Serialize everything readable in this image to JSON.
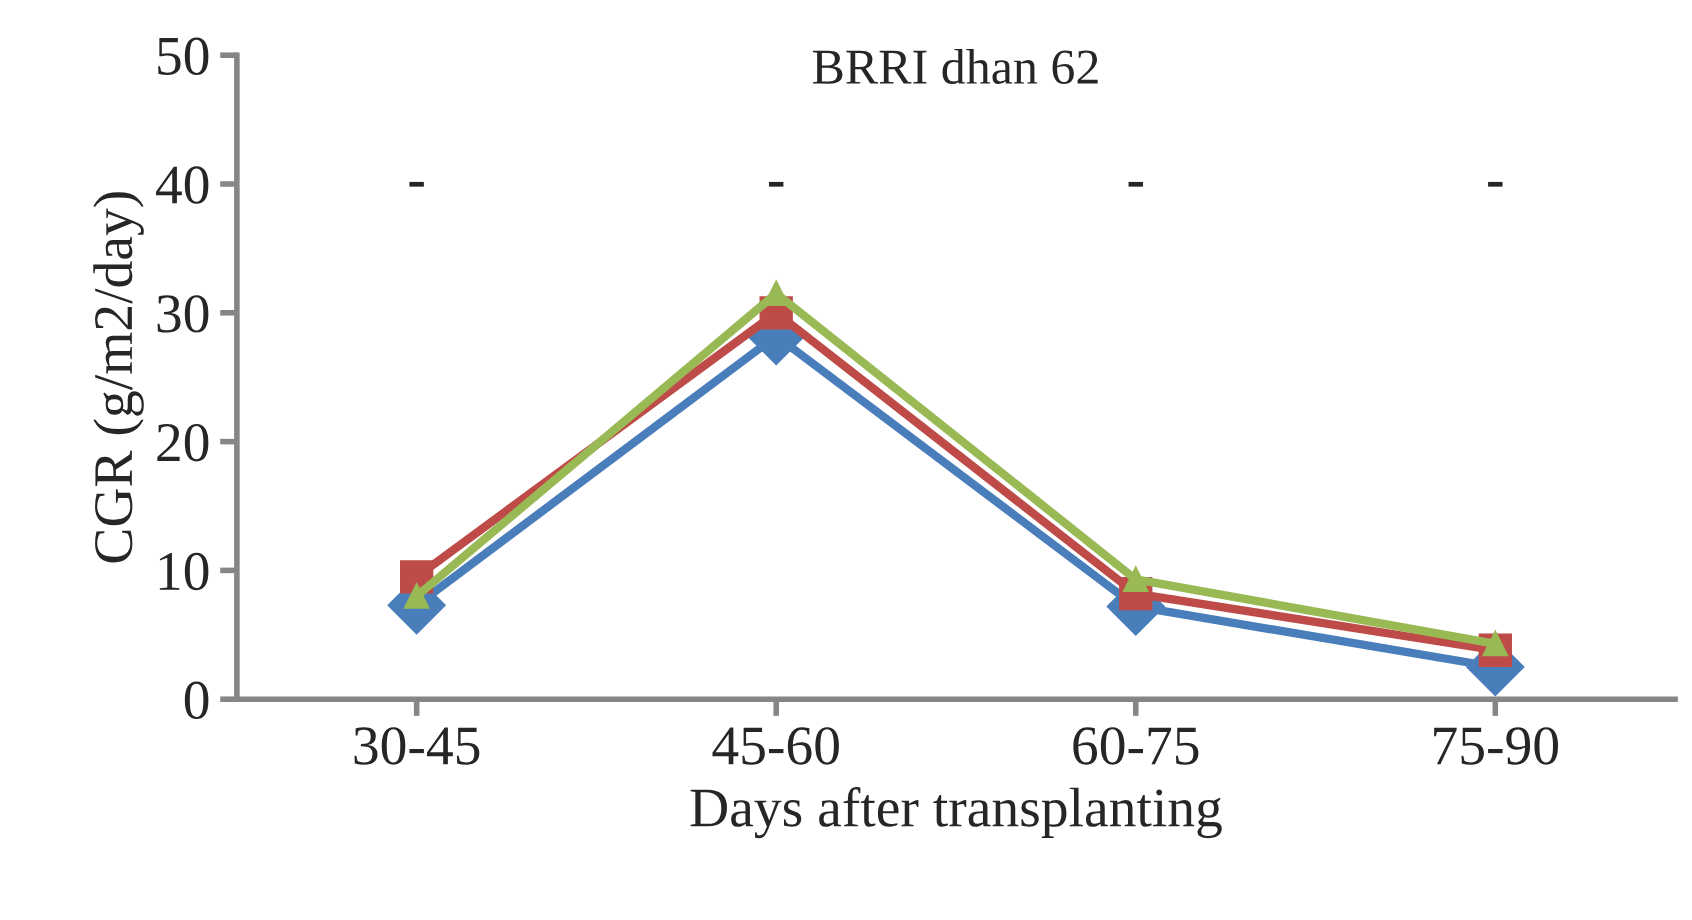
{
  "chart_data": {
    "type": "line",
    "title": "BRRI dhan 62",
    "xlabel": "Days after transplanting",
    "ylabel": "CGR (g/m2/day)",
    "categories": [
      "30-45",
      "45-60",
      "60-75",
      "75-90"
    ],
    "series": [
      {
        "color": "#4a7ebb",
        "marker": "diamond",
        "values": [
          7.3,
          28.2,
          7.2,
          2.5
        ]
      },
      {
        "color": "#be4b48",
        "marker": "square",
        "values": [
          9.5,
          30,
          8.2,
          3.8
        ]
      },
      {
        "color": "#98b954",
        "marker": "triangle",
        "values": [
          8,
          31.5,
          9.3,
          4.3
        ]
      }
    ],
    "ylim": [
      0,
      50
    ],
    "yticks": [
      0,
      10,
      20,
      30,
      40,
      50
    ],
    "grid": false,
    "annotations": [
      "-",
      "-",
      "-",
      "-"
    ]
  }
}
